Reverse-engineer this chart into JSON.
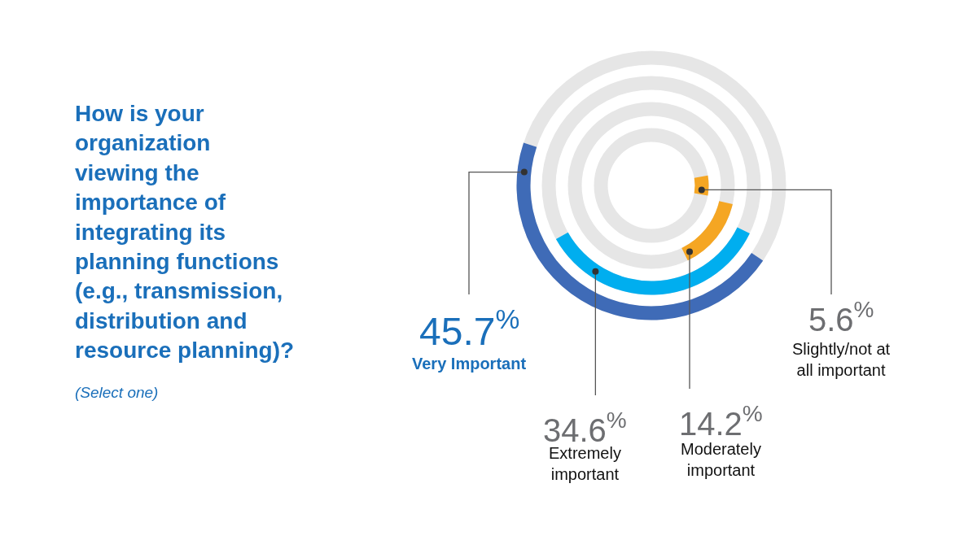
{
  "chart_data": {
    "type": "other",
    "title": "How is your\norganization\nviewing the\nimportance of\nintegrating its\nplanning functions\n(e.g., transmission,\ndistribution and\nresource planning)?",
    "subtitle": "(Select one)",
    "categories": [
      "Very Important",
      "Extremely\nimportant",
      "Moderately\nimportant",
      "Slightly/not at\nall important"
    ],
    "values": [
      45.7,
      34.6,
      14.2,
      5.6
    ],
    "colors": [
      "#3f6bb7",
      "#00aeef",
      "#f5a623",
      "#f5a623"
    ],
    "value_labels": [
      "45.7$^{%}$",
      "34.6$^{%}$",
      "14.2$^{%}$",
      "5.6$^{%}$"
    ]
  }
}
